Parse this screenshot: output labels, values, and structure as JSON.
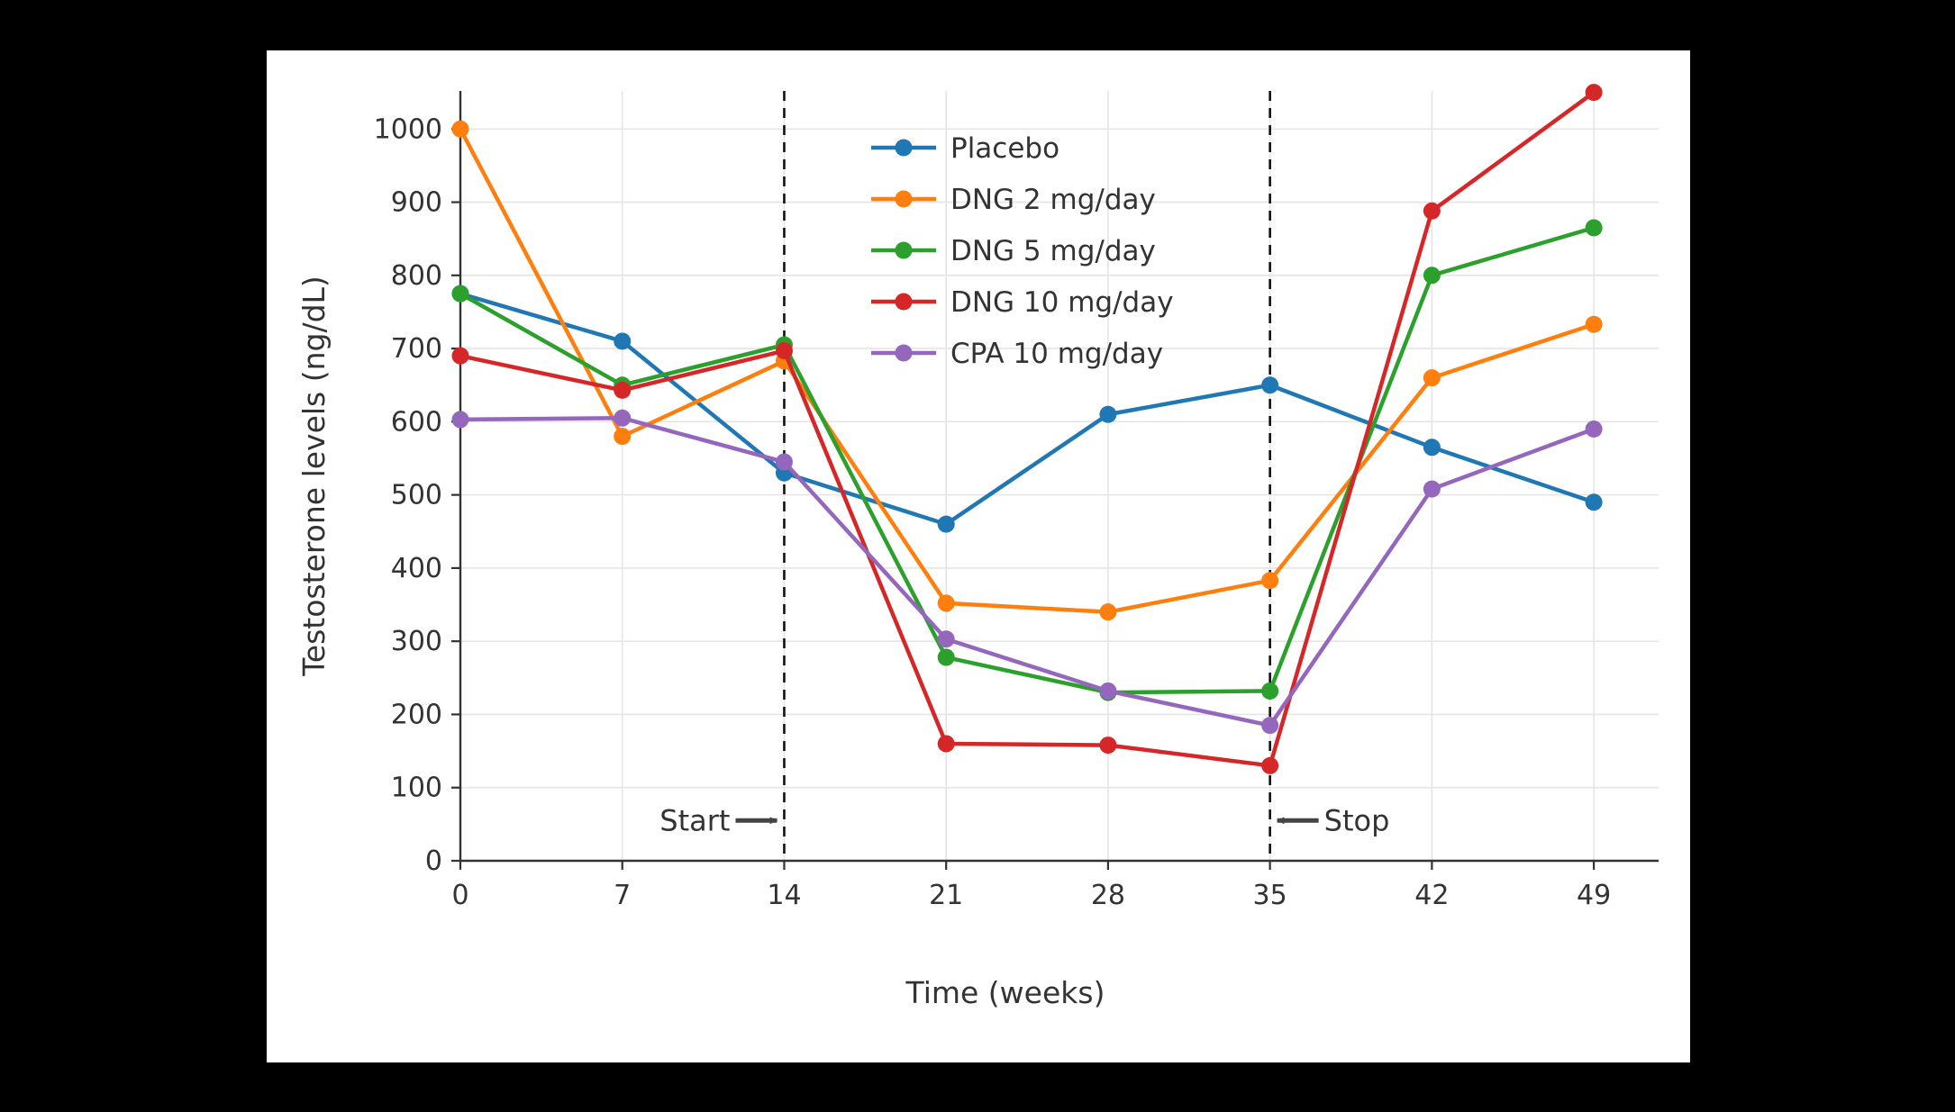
{
  "page": {
    "background_color": "#000000",
    "card_background_color": "#ffffff"
  },
  "chart_data": {
    "type": "line",
    "title": "",
    "xlabel": "Time (weeks)",
    "ylabel": "Testosterone levels (ng/dL)",
    "x": [
      0,
      7,
      14,
      21,
      28,
      35,
      42,
      49
    ],
    "xlim": [
      0,
      51.8
    ],
    "ylim": [
      0,
      1052
    ],
    "yticks": [
      0,
      100,
      200,
      300,
      400,
      500,
      600,
      700,
      800,
      900,
      1000
    ],
    "grid": true,
    "legend_position": "top-center-inside",
    "series": [
      {
        "name": "Placebo",
        "color": "#1f77b4",
        "values": [
          775,
          710,
          530,
          460,
          610,
          650,
          565,
          490
        ]
      },
      {
        "name": "DNG 2 mg/day",
        "color": "#ff7f0e",
        "values": [
          1000,
          580,
          683,
          352,
          340,
          383,
          660,
          733
        ]
      },
      {
        "name": "DNG 5 mg/day",
        "color": "#2ca02c",
        "values": [
          775,
          650,
          705,
          278,
          230,
          232,
          800,
          865
        ]
      },
      {
        "name": "DNG 10 mg/day",
        "color": "#d62728",
        "values": [
          690,
          643,
          697,
          160,
          158,
          130,
          888,
          1050
        ]
      },
      {
        "name": "CPA 10 mg/day",
        "color": "#9467bd",
        "values": [
          603,
          605,
          545,
          303,
          232,
          185,
          508,
          590
        ]
      }
    ],
    "vlines": [
      {
        "week": 14,
        "label": "Start",
        "label_side": "left"
      },
      {
        "week": 35,
        "label": "Stop",
        "label_side": "right"
      }
    ],
    "style": {
      "grid_color": "#e5e5e5",
      "axis_color": "#333333",
      "vline_color": "#111111",
      "annotation_color": "#444444",
      "text_color": "#333333"
    }
  }
}
